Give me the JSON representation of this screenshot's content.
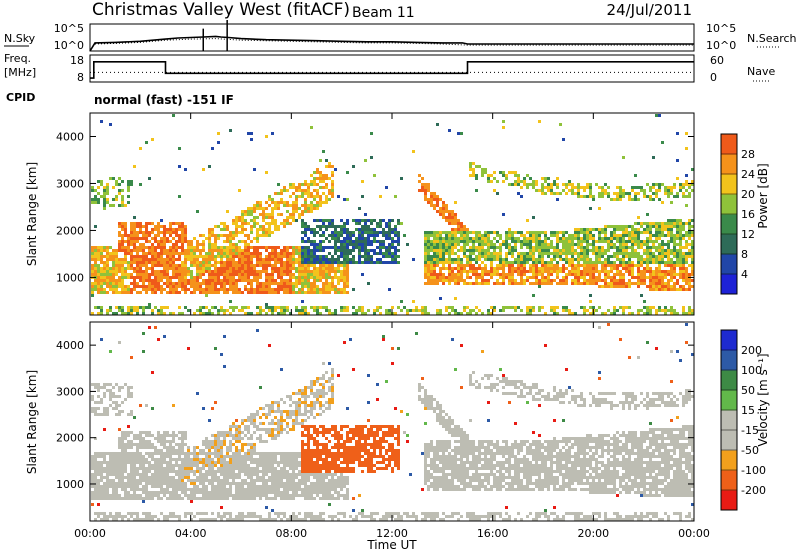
{
  "header": {
    "title": "Christmas Valley West (fitACF)",
    "beam": "Beam 11",
    "date": "24/Jul/2011"
  },
  "left_labels": {
    "nsky": "N.Sky",
    "freq": "Freq.",
    "freq_unit": "[MHz]",
    "cpid": "CPID"
  },
  "right_labels": {
    "nsearch": "N.Search",
    "nave": "Nave"
  },
  "cpid_text": "normal (fast) -151 IF",
  "colors": {
    "power": [
      "#1e22d6",
      "#2146a8",
      "#2e6b58",
      "#3a8a4a",
      "#8fc23a",
      "#f2c31c",
      "#f5921b",
      "#ef5a1a",
      "#e51a14"
    ],
    "velocity": [
      "#e81b14",
      "#ef6019",
      "#f2a01c",
      "#bdbdb3",
      "#bdbdb3",
      "#62b84a",
      "#3d8a45",
      "#2d5aa6",
      "#1e2ad0"
    ]
  },
  "chart_data": [
    {
      "type": "line",
      "name": "noise",
      "left_ticks": [
        "10^5",
        "10^0"
      ],
      "right_ticks": [
        "10^5",
        "10^0"
      ],
      "ylim_log10": [
        0,
        5
      ],
      "series": [
        {
          "name": "N.Sky",
          "style": "solid",
          "x": [
            0.0,
            0.2,
            1,
            2,
            3,
            3.5,
            4,
            4.5,
            5,
            5.2,
            5.5,
            6,
            7,
            8,
            9,
            10,
            11,
            12,
            13,
            14,
            14.8,
            15,
            16,
            17,
            18,
            19,
            20,
            21,
            22,
            23,
            24
          ],
          "y": [
            0,
            1.5,
            1.6,
            1.8,
            2.2,
            2.4,
            2.5,
            2.6,
            2.7,
            2.6,
            2.5,
            2.3,
            2.1,
            2.0,
            1.9,
            1.8,
            1.7,
            1.7,
            1.6,
            1.5,
            1.5,
            1.3,
            1.3,
            1.3,
            1.3,
            1.3,
            1.3,
            1.3,
            1.3,
            1.3,
            1.3
          ]
        },
        {
          "name": "N.Search",
          "style": "dotted",
          "x": [
            0.2,
            1,
            2,
            3,
            4,
            5,
            6,
            7,
            8,
            9,
            10,
            11,
            12,
            13,
            14,
            15,
            16,
            17,
            18,
            19,
            20,
            21,
            22,
            23,
            24
          ],
          "y": [
            1.3,
            1.4,
            1.6,
            2.0,
            2.2,
            2.3,
            2.0,
            1.9,
            1.8,
            1.7,
            1.6,
            1.5,
            1.5,
            1.4,
            1.3,
            1.1,
            1.1,
            1.1,
            1.1,
            1.1,
            1.1,
            1.1,
            1.1,
            1.1,
            1.1
          ]
        }
      ],
      "spikes": [
        {
          "x": 5.45,
          "y": 5
        },
        {
          "x": 4.5,
          "y": 3.4
        }
      ]
    },
    {
      "type": "line",
      "name": "frequency",
      "left_ticks": [
        "18",
        "8"
      ],
      "right_ticks": [
        "60",
        "0"
      ],
      "series": [
        {
          "name": "Freq.",
          "style": "solid",
          "x": [
            0,
            0.15,
            0.15,
            3.0,
            3.0,
            15.0,
            15.0,
            24
          ],
          "y": [
            8,
            8,
            16.5,
            16.5,
            10.5,
            10.5,
            16.5,
            16.5
          ]
        },
        {
          "name": "Nave",
          "style": "dotted",
          "x": [
            0,
            24
          ],
          "y": [
            11,
            11
          ]
        }
      ]
    },
    {
      "type": "heatmap",
      "name": "power",
      "ylabel": "Slant Range [km]",
      "ylim": [
        200,
        4500
      ],
      "y_ticks": [
        "1000",
        "2000",
        "3000",
        "4000"
      ],
      "y_tick_values": [
        1000,
        2000,
        3000,
        4000
      ],
      "colorbar_label": "Power [dB]",
      "colorbar_ticks": [
        "28",
        "24",
        "20",
        "16",
        "12",
        "8",
        "4"
      ],
      "colorbar_range": [
        0,
        32
      ]
    },
    {
      "type": "heatmap",
      "name": "velocity",
      "ylabel": "Slant Range [km]",
      "xlabel": "Time UT",
      "ylim": [
        200,
        4500
      ],
      "y_ticks": [
        "1000",
        "2000",
        "3000",
        "4000"
      ],
      "y_tick_values": [
        1000,
        2000,
        3000,
        4000
      ],
      "x_ticks": [
        "00:00",
        "04:00",
        "08:00",
        "12:00",
        "16:00",
        "20:00",
        "00:00"
      ],
      "colorbar_label": "Velocity [m s⁻¹]",
      "colorbar_ticks": [
        "200",
        "100",
        "50",
        "15",
        "-15",
        "-50",
        "-100",
        "-200"
      ]
    }
  ]
}
